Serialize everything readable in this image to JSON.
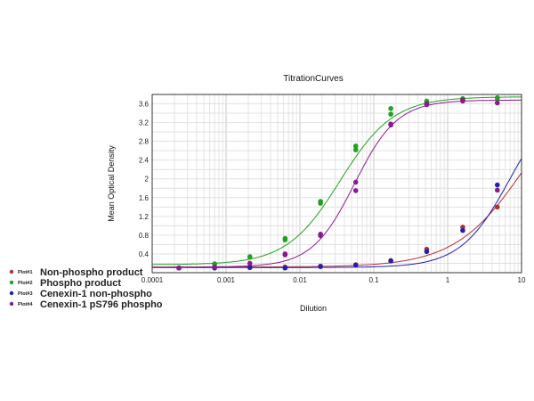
{
  "chart_data": {
    "type": "scatter",
    "title": "TitrationCurves",
    "xlabel": "Dilution",
    "ylabel": "Mean Optical Density",
    "x_scale": "log",
    "xlim": [
      0.0001,
      10
    ],
    "ylim": [
      0,
      3.8
    ],
    "x_ticks": [
      "0.0001",
      "0.001",
      "0.01",
      "0.1",
      "1",
      "10"
    ],
    "y_ticks": [
      "0.4",
      "0.8",
      "1.2",
      "1.6",
      "2",
      "2.4",
      "2.8",
      "3.2",
      "3.6"
    ],
    "grid": true,
    "legend_position": "bottom-left",
    "series": [
      {
        "tag": "Plot#1",
        "name": "Non-phospho product",
        "color": "#b03030",
        "x": [
          0.00023,
          0.0007,
          0.0021,
          0.0063,
          0.019,
          0.057,
          0.17,
          0.52,
          1.6,
          4.7
        ],
        "y": [
          0.1,
          0.11,
          0.12,
          0.12,
          0.14,
          0.17,
          0.26,
          0.5,
          0.97,
          1.4
        ],
        "fit": {
          "bottom": 0.12,
          "top": 4.5,
          "ec50": 12,
          "hill": 0.9
        }
      },
      {
        "tag": "Plot#2",
        "name": "Phospho product",
        "color": "#22a022",
        "x": [
          0.0007,
          0.0007,
          0.0021,
          0.0021,
          0.0063,
          0.0063,
          0.019,
          0.019,
          0.057,
          0.057,
          0.17,
          0.17,
          0.52,
          0.52,
          1.6,
          1.6,
          4.7,
          4.7
        ],
        "y": [
          0.18,
          0.19,
          0.33,
          0.34,
          0.7,
          0.73,
          1.48,
          1.52,
          2.62,
          2.7,
          3.38,
          3.5,
          3.63,
          3.66,
          3.7,
          3.71,
          3.72,
          3.73
        ],
        "fit": {
          "bottom": 0.17,
          "top": 3.75,
          "ec50": 0.035,
          "hill": 1.2
        }
      },
      {
        "tag": "Plot#3",
        "name": "Cenexin-1 non-phospho",
        "color": "#2020b0",
        "x": [
          0.00023,
          0.0007,
          0.0021,
          0.0063,
          0.019,
          0.057,
          0.17,
          0.52,
          1.6,
          4.7
        ],
        "y": [
          0.1,
          0.1,
          0.11,
          0.1,
          0.13,
          0.16,
          0.25,
          0.45,
          0.9,
          1.87
        ],
        "fit": {
          "bottom": 0.11,
          "top": 3.9,
          "ec50": 7,
          "hill": 1.3
        }
      },
      {
        "tag": "Plot#4",
        "name": "Cenexin-1 pS796 phospho",
        "color": "#8b1a8b",
        "x": [
          0.00023,
          0.0007,
          0.0021,
          0.0063,
          0.0063,
          0.019,
          0.019,
          0.057,
          0.057,
          0.17,
          0.17,
          0.52,
          0.52,
          1.6,
          1.6,
          4.7,
          4.7
        ],
        "y": [
          0.1,
          0.12,
          0.2,
          0.38,
          0.4,
          0.79,
          0.82,
          1.75,
          1.93,
          3.15,
          3.17,
          3.58,
          3.6,
          3.66,
          3.68,
          3.62,
          1.76
        ],
        "fit": {
          "bottom": 0.12,
          "top": 3.68,
          "ec50": 0.055,
          "hill": 1.5
        }
      }
    ]
  }
}
